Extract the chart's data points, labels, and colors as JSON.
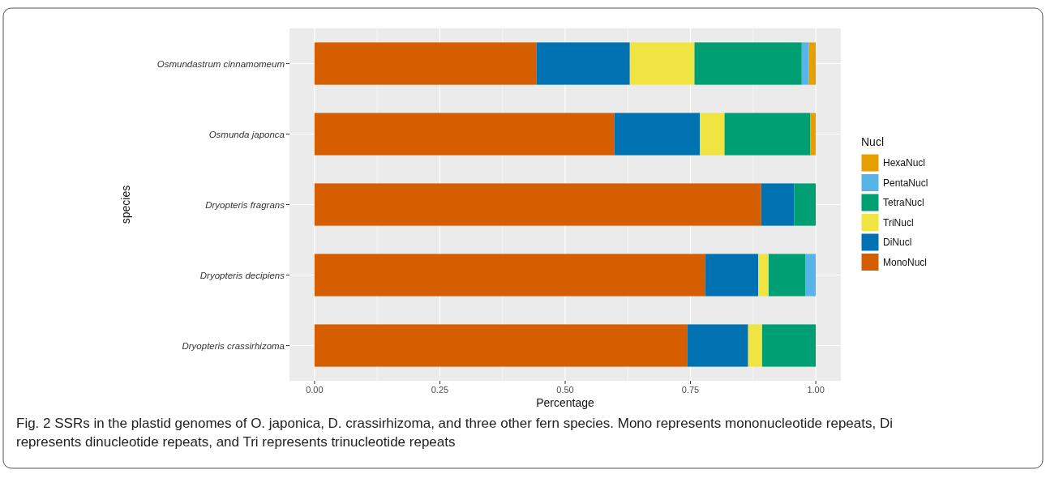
{
  "chart_data": {
    "type": "bar",
    "orientation": "horizontal",
    "stacked": true,
    "categories": [
      "Osmundastrum cinnamomeum",
      "Osmunda japonca",
      "Dryopteris fragrans",
      "Dryopteris decipiens",
      "Dryopteris crassirhizoma"
    ],
    "series": [
      {
        "name": "MonoNucl",
        "color": "#d55e00",
        "values": [
          0.443,
          0.598,
          0.891,
          0.78,
          0.744
        ]
      },
      {
        "name": "DiNucl",
        "color": "#0072b2",
        "values": [
          0.186,
          0.171,
          0.066,
          0.105,
          0.121
        ]
      },
      {
        "name": "TriNucl",
        "color": "#f0e442",
        "values": [
          0.129,
          0.049,
          0,
          0.021,
          0.028
        ]
      },
      {
        "name": "TetraNucl",
        "color": "#009e73",
        "values": [
          0.214,
          0.171,
          0.043,
          0.073,
          0.107
        ]
      },
      {
        "name": "PentaNucl",
        "color": "#56b4e9",
        "values": [
          0.014,
          0,
          0,
          0.021,
          0
        ]
      },
      {
        "name": "HexaNucl",
        "color": "#e69f00",
        "values": [
          0.014,
          0.011,
          0,
          0,
          0
        ]
      }
    ],
    "xlim": [
      -0.05,
      1.05
    ],
    "xticks": [
      {
        "value": 0,
        "label": "0.00"
      },
      {
        "value": 0.25,
        "label": "0.25"
      },
      {
        "value": 0.5,
        "label": "0.50"
      },
      {
        "value": 0.75,
        "label": "0.75"
      },
      {
        "value": 1,
        "label": "1.00"
      }
    ],
    "xlabel": "Percentage",
    "ylabel": "species",
    "legend_title": "Nucl",
    "legend": "right",
    "grid": true,
    "annotations": [
      "Fig. 2  SSRs in the plastid genomes of O. japonica, D. crassirhizoma, and three other fern species. Mono represents mononucleotide repeats, Di represents dinucleotide repeats, and Tri represents trinucleotide repeats"
    ]
  }
}
